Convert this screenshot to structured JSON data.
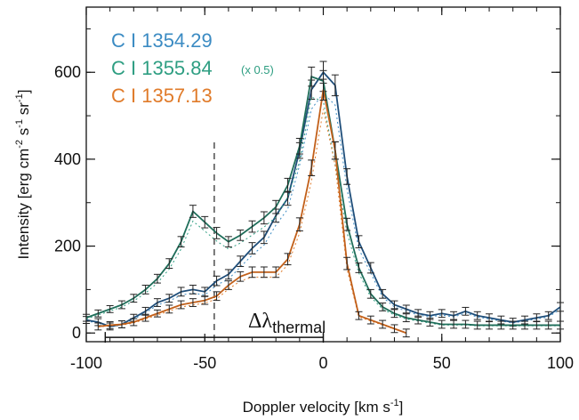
{
  "chart_data": {
    "type": "line",
    "xlabel": "Doppler velocity [km s",
    "xlabel_sup": "-1",
    "xlabel_end": "]",
    "ylabel": "Intensity [erg cm",
    "ylabel_sup1": "-2",
    "ylabel_mid1": " s",
    "ylabel_sup2": "-1",
    "ylabel_mid2": " sr",
    "ylabel_sup3": "-1",
    "ylabel_end": "]",
    "xlim": [
      -100,
      100
    ],
    "ylim": [
      -20,
      750
    ],
    "xticks": [
      -100,
      -50,
      0,
      50,
      100
    ],
    "xtick_labels": [
      "-100",
      "-50",
      "0",
      "50",
      "100"
    ],
    "yticks": [
      0,
      200,
      400,
      600
    ],
    "ytick_labels": [
      "0",
      "200",
      "400",
      "600"
    ],
    "legend_position": "top-left",
    "series": [
      {
        "name": "C I 1354.29",
        "color": "#3b8bc3",
        "line_color": "#1f4e7a",
        "x": [
          -100,
          -95,
          -90,
          -85,
          -80,
          -75,
          -70,
          -65,
          -60,
          -55,
          -50,
          -45,
          -40,
          -35,
          -30,
          -25,
          -20,
          -15,
          -10,
          -5,
          0,
          5,
          10,
          15,
          20,
          25,
          30,
          35,
          40,
          45,
          50,
          55,
          60,
          65,
          70,
          75,
          80,
          85,
          90,
          95,
          100
        ],
        "y": [
          30,
          25,
          15,
          20,
          35,
          50,
          70,
          80,
          95,
          100,
          95,
          120,
          135,
          165,
          195,
          220,
          270,
          310,
          420,
          560,
          600,
          570,
          360,
          210,
          150,
          90,
          65,
          55,
          45,
          40,
          45,
          40,
          50,
          40,
          35,
          30,
          25,
          30,
          35,
          40,
          60
        ],
        "err": [
          8,
          8,
          8,
          8,
          8,
          9,
          9,
          9,
          10,
          10,
          10,
          11,
          11,
          12,
          13,
          14,
          15,
          16,
          18,
          22,
          25,
          24,
          18,
          14,
          12,
          10,
          9,
          9,
          9,
          9,
          9,
          9,
          9,
          9,
          9,
          9,
          9,
          9,
          9,
          9,
          10
        ]
      },
      {
        "name": "C I 1355.84",
        "note": "(x 0.5)",
        "color": "#2e9e82",
        "line_color": "#1f6e5a",
        "x": [
          -100,
          -95,
          -90,
          -85,
          -80,
          -75,
          -70,
          -65,
          -60,
          -55,
          -50,
          -45,
          -40,
          -35,
          -30,
          -25,
          -20,
          -15,
          -10,
          -5,
          0,
          5,
          10,
          15,
          20,
          25,
          30,
          35,
          40,
          45,
          50,
          55,
          60,
          65,
          70,
          75,
          80,
          85,
          90,
          95,
          100
        ],
        "y": [
          35,
          45,
          55,
          65,
          80,
          100,
          125,
          160,
          210,
          280,
          255,
          230,
          210,
          225,
          245,
          265,
          290,
          340,
          430,
          590,
          580,
          420,
          250,
          150,
          90,
          60,
          45,
          35,
          30,
          25,
          20,
          20,
          20,
          18,
          18,
          18,
          18,
          18,
          18,
          18,
          18
        ],
        "err": [
          8,
          8,
          8,
          9,
          9,
          10,
          10,
          11,
          12,
          14,
          13,
          13,
          12,
          12,
          13,
          14,
          15,
          16,
          18,
          22,
          24,
          20,
          14,
          11,
          10,
          9,
          9,
          9,
          9,
          9,
          9,
          9,
          9,
          9,
          9,
          9,
          9,
          9,
          9,
          9,
          9
        ]
      },
      {
        "name": "C I 1357.13",
        "color": "#e07b2a",
        "line_color": "#c2601a",
        "x": [
          -95,
          -90,
          -85,
          -80,
          -75,
          -70,
          -65,
          -60,
          -55,
          -50,
          -45,
          -40,
          -35,
          -30,
          -25,
          -20,
          -15,
          -10,
          -5,
          0,
          5,
          10,
          15,
          20,
          25,
          30,
          35
        ],
        "y": [
          15,
          18,
          20,
          25,
          35,
          45,
          55,
          65,
          70,
          75,
          85,
          110,
          130,
          140,
          140,
          140,
          170,
          250,
          380,
          560,
          420,
          160,
          40,
          30,
          20,
          10,
          0
        ],
        "err": [
          8,
          8,
          8,
          8,
          8,
          8,
          9,
          9,
          9,
          9,
          10,
          10,
          11,
          12,
          12,
          12,
          13,
          15,
          18,
          24,
          20,
          14,
          9,
          9,
          9,
          9,
          9
        ]
      }
    ],
    "annotations": {
      "dashed_line_x": -46,
      "thermal_bar": {
        "x_start": -92,
        "x_end": 0,
        "y": -10
      },
      "thermal_label": "Δλ",
      "thermal_label_sub": "thermal"
    }
  }
}
